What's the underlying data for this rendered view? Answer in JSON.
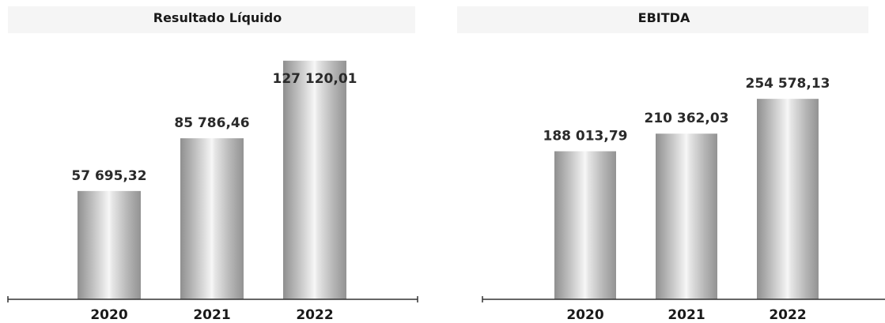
{
  "chart_data": [
    {
      "type": "bar",
      "title": "Resultado Líquido",
      "categories": [
        "2020",
        "2021",
        "2022"
      ],
      "values": [
        57695.32,
        85786.46,
        127120.01
      ],
      "value_labels": [
        "57 695,32",
        "85 786,46",
        "127 120,01"
      ],
      "ylim": [
        0,
        130000
      ],
      "grid": false,
      "legend": "none",
      "bar_color": "#c4c4c4"
    },
    {
      "type": "bar",
      "title": "EBITDA",
      "categories": [
        "2020",
        "2021",
        "2022"
      ],
      "values": [
        188013.79,
        210362.03,
        254578.13
      ],
      "value_labels": [
        "188 013,79",
        "210 362,03",
        "254 578,13"
      ],
      "ylim": [
        0,
        350000
      ],
      "grid": false,
      "legend": "none",
      "bar_color": "#c4c4c4"
    }
  ]
}
